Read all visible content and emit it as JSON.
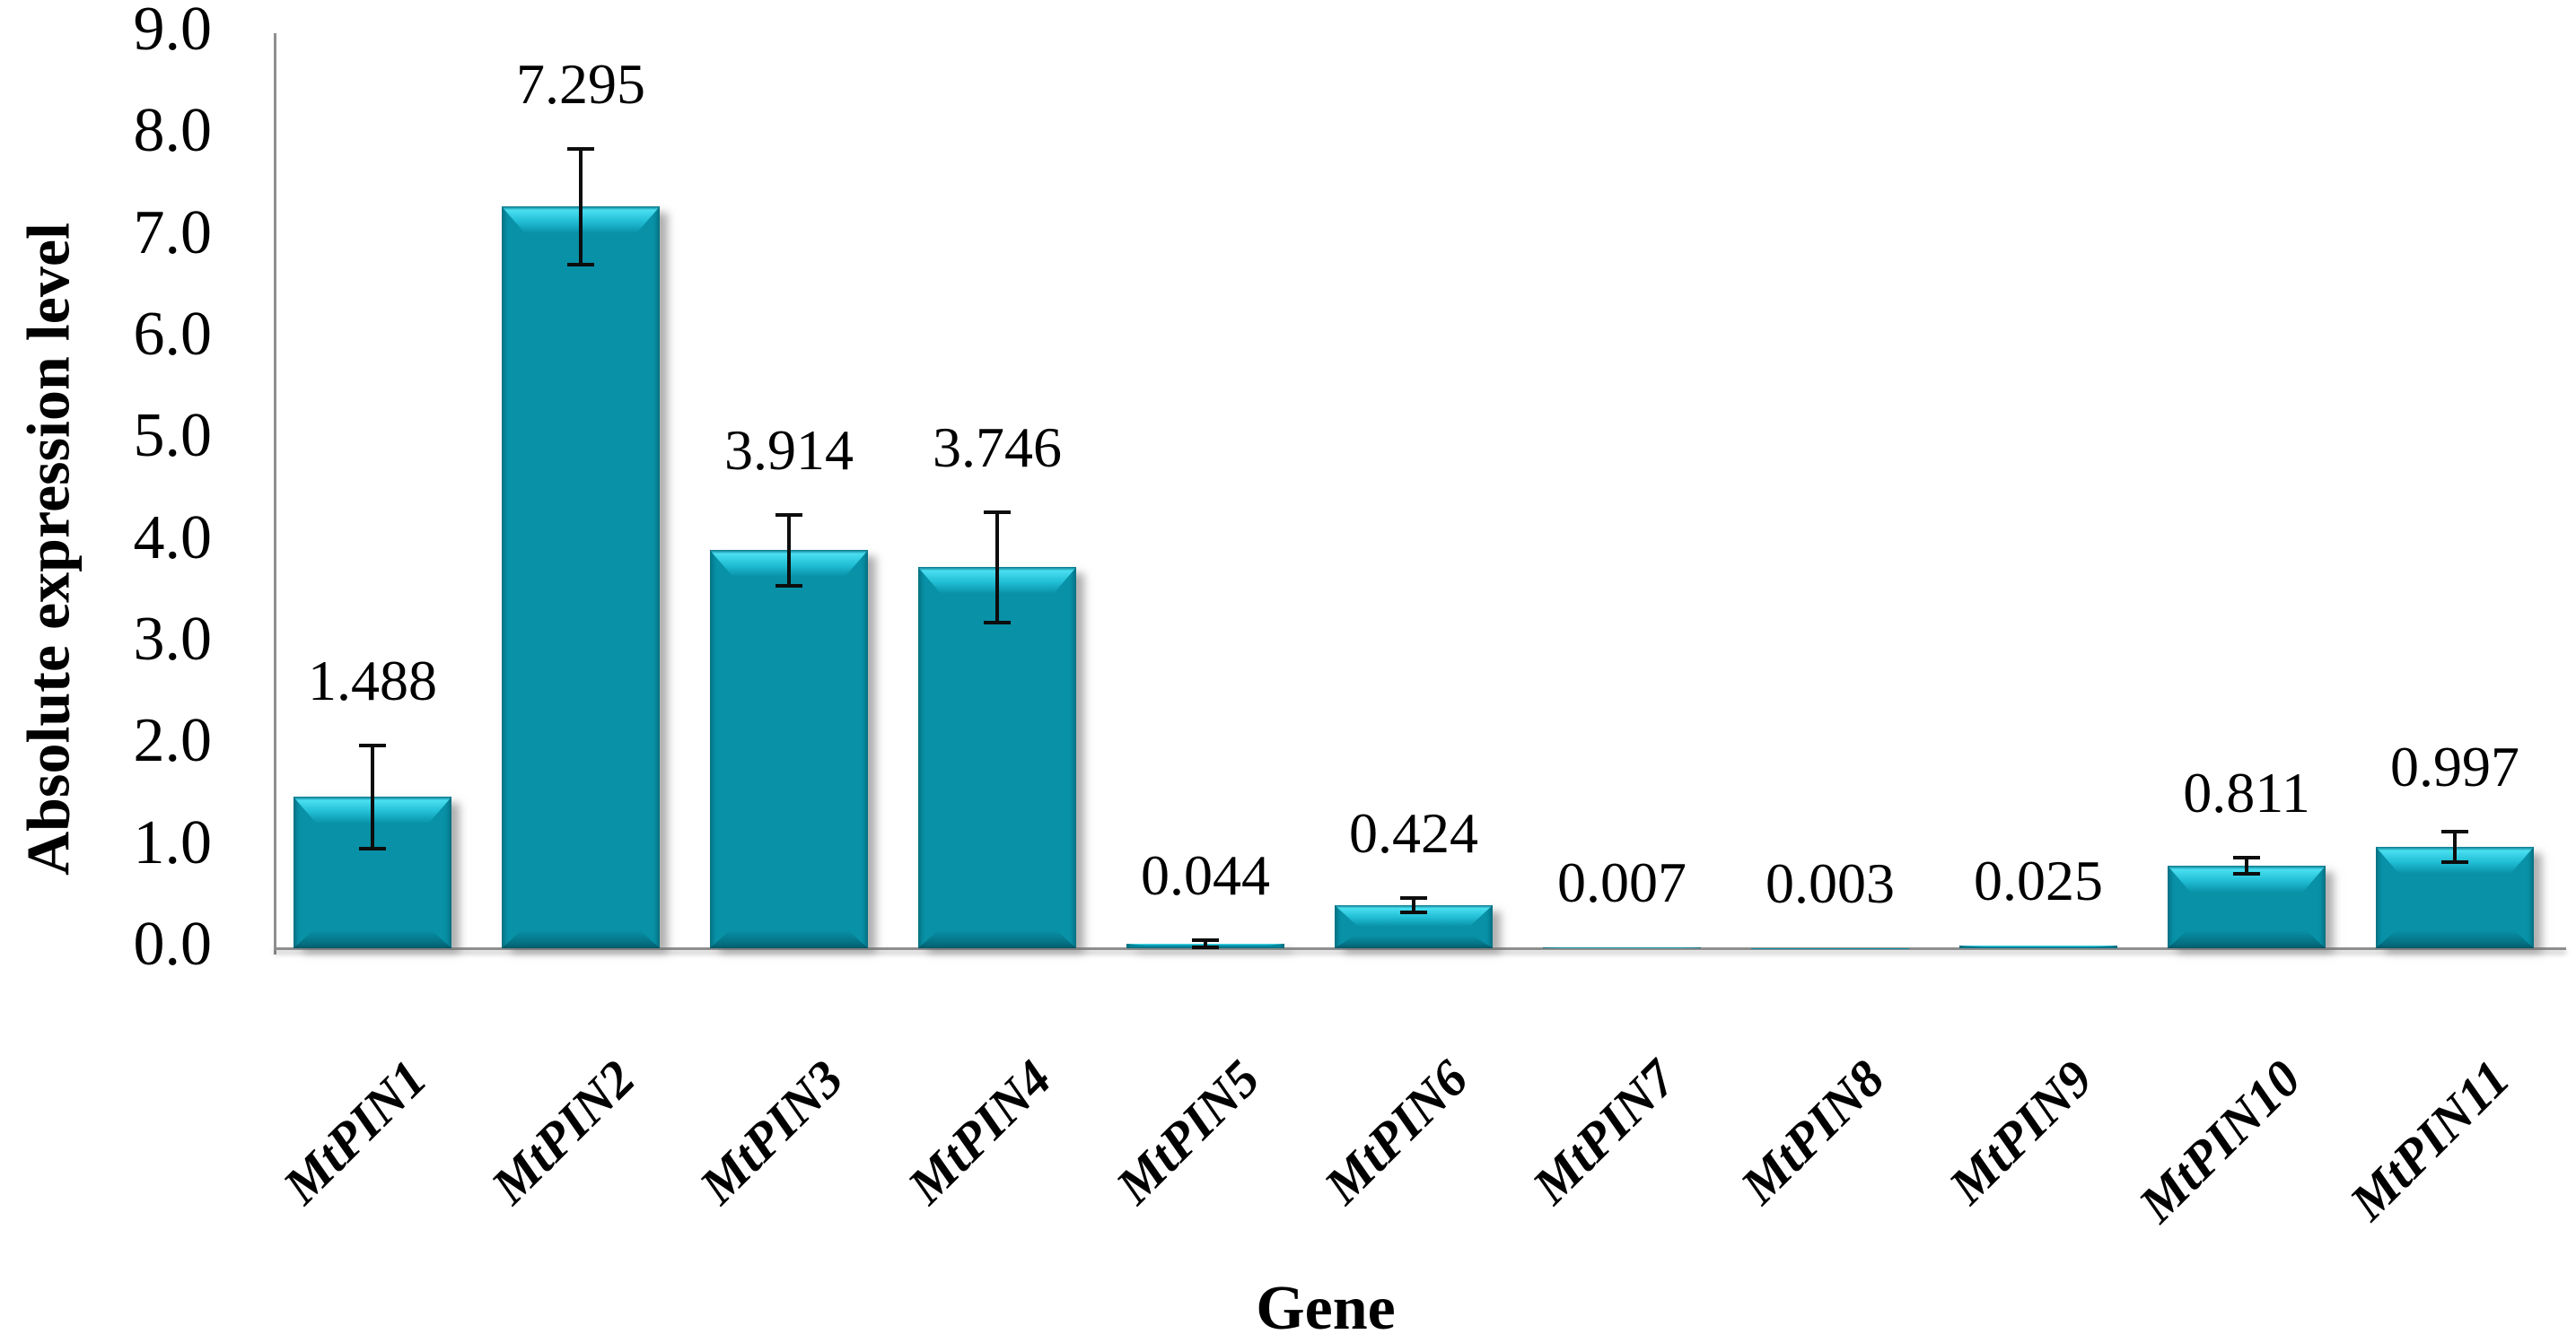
{
  "figure": {
    "background": "#FFFFFF"
  },
  "chart_data": {
    "type": "bar",
    "title": "",
    "xlabel": "Gene",
    "ylabel": "Absolute expression level",
    "categories": [
      "MtPIN1",
      "MtPIN2",
      "MtPIN3",
      "MtPIN4",
      "MtPIN5",
      "MtPIN6",
      "MtPIN7",
      "MtPIN8",
      "MtPIN9",
      "MtPIN10",
      "MtPIN11"
    ],
    "values": [
      1.488,
      7.295,
      3.914,
      3.746,
      0.044,
      0.424,
      0.007,
      0.003,
      0.025,
      0.811,
      0.997
    ],
    "data_labels": [
      "1.488",
      "7.295",
      "3.914",
      "3.746",
      "0.044",
      "0.424",
      "0.007",
      "0.003",
      "0.025",
      "0.811",
      "0.997"
    ],
    "error_bars": [
      0.51,
      0.57,
      0.35,
      0.54,
      0.035,
      0.07,
      0,
      0,
      0,
      0.08,
      0.15
    ],
    "ylim": [
      0,
      9.0
    ],
    "ytick_labels": [
      "0.0",
      "1.0",
      "2.0",
      "3.0",
      "4.0",
      "5.0",
      "6.0",
      "7.0",
      "8.0",
      "9.0"
    ],
    "grid": false,
    "legend": "none",
    "colors": {
      "bar": "#0891A7",
      "bar_highlight": "#4ADEF0",
      "bar_edge_dark": "#0A7487",
      "error_bar": "#0D0D0D",
      "axis_line": "#8F8F8F",
      "text": "#000000"
    }
  }
}
